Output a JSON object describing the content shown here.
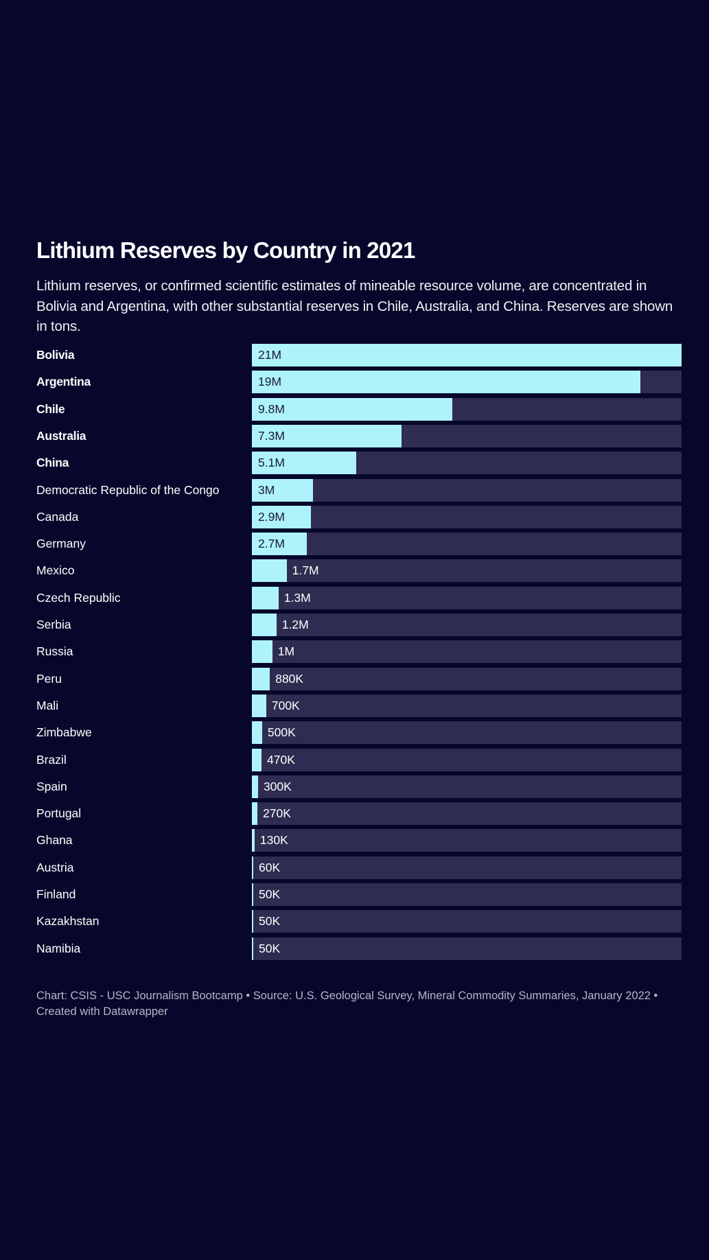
{
  "title": "Lithium Reserves by Country in 2021",
  "subtitle": "Lithium reserves, or confirmed scientific estimates of mineable resource volume, are concentrated in Bolivia and Argentina, with other substantial reserves in Chile, Australia, and China. Reserves are shown in tons.",
  "footer": "Chart: CSIS - USC Journalism Bootcamp • Source: U.S. Geological Survey, Mineral Commodity Summaries, January 2022 • Created with Datawrapper",
  "colors": {
    "background": "#07072b",
    "bar": "#aef3fa",
    "track": "#2e2c50"
  },
  "chart_data": {
    "type": "bar",
    "orientation": "horizontal",
    "title": "Lithium Reserves by Country in 2021",
    "unit": "tons",
    "xlim": [
      0,
      21000000
    ],
    "categories": [
      "Bolivia",
      "Argentina",
      "Chile",
      "Australia",
      "China",
      "Democratic Republic of the Congo",
      "Canada",
      "Germany",
      "Mexico",
      "Czech Republic",
      "Serbia",
      "Russia",
      "Peru",
      "Mali",
      "Zimbabwe",
      "Brazil",
      "Spain",
      "Portugal",
      "Ghana",
      "Austria",
      "Finland",
      "Kazakhstan",
      "Namibia"
    ],
    "values": [
      21000000,
      19000000,
      9800000,
      7300000,
      5100000,
      3000000,
      2900000,
      2700000,
      1700000,
      1300000,
      1200000,
      1000000,
      880000,
      700000,
      500000,
      470000,
      300000,
      270000,
      130000,
      60000,
      50000,
      50000,
      50000
    ],
    "labels": [
      "21M",
      "19M",
      "9.8M",
      "7.3M",
      "5.1M",
      "3M",
      "2.9M",
      "2.7M",
      "1.7M",
      "1.3M",
      "1.2M",
      "1M",
      "880K",
      "700K",
      "500K",
      "470K",
      "300K",
      "270K",
      "130K",
      "60K",
      "50K",
      "50K",
      "50K"
    ],
    "highlighted": [
      "Bolivia",
      "Argentina",
      "Chile",
      "Australia",
      "China"
    ]
  }
}
